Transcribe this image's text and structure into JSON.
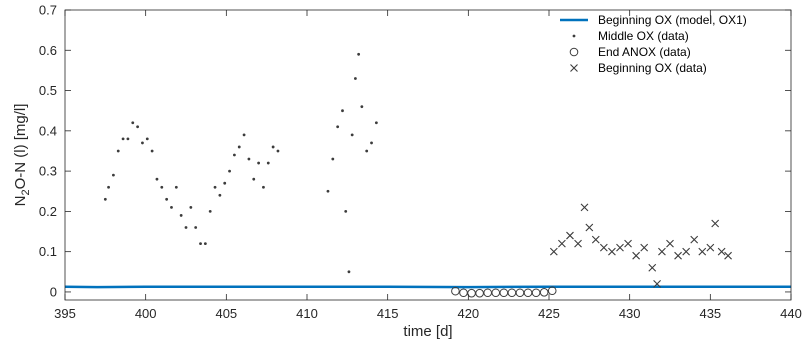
{
  "chart_data": {
    "type": "scatter",
    "xlabel": "time [d]",
    "ylabel": {
      "main": "N",
      "sub": "2",
      "rest": "O-N (l) [mg/l]"
    },
    "xlim": [
      395,
      440
    ],
    "ylim": [
      -0.02,
      0.7
    ],
    "xticks": [
      395,
      400,
      405,
      410,
      415,
      420,
      425,
      430,
      435,
      440
    ],
    "yticks": [
      0,
      0.1,
      0.2,
      0.3,
      0.4,
      0.5,
      0.6,
      0.7
    ],
    "grid": false,
    "legend_position": "top-right",
    "colors": {
      "model": "#0072BD",
      "data": "#3C3C3C",
      "axis": "#262626"
    },
    "series": [
      {
        "name": "Beginning OX (model, OX1)",
        "kind": "line",
        "x": [
          395,
          397,
          400,
          405,
          410,
          412.5,
          415,
          420,
          425,
          430,
          435,
          440
        ],
        "y": [
          0.013,
          0.012,
          0.013,
          0.013,
          0.013,
          0.013,
          0.013,
          0.012,
          0.013,
          0.013,
          0.013,
          0.013
        ]
      },
      {
        "name": "Middle OX (data)",
        "kind": "dot",
        "x": [
          397.5,
          397.7,
          398.0,
          398.3,
          398.6,
          398.9,
          399.2,
          399.5,
          399.8,
          400.1,
          400.4,
          400.7,
          401.0,
          401.3,
          401.6,
          401.9,
          402.2,
          402.5,
          402.8,
          403.1,
          403.4,
          403.7,
          404.0,
          404.3,
          404.6,
          404.9,
          405.2,
          405.5,
          405.8,
          406.1,
          406.4,
          406.7,
          407.0,
          407.3,
          407.6,
          407.9,
          408.2,
          411.3,
          411.6,
          411.9,
          412.2,
          412.4,
          412.6,
          412.8,
          413.0,
          413.2,
          413.4,
          413.7,
          414.0,
          414.3
        ],
        "y": [
          0.23,
          0.26,
          0.29,
          0.35,
          0.38,
          0.38,
          0.42,
          0.41,
          0.37,
          0.38,
          0.35,
          0.28,
          0.26,
          0.23,
          0.21,
          0.26,
          0.19,
          0.16,
          0.21,
          0.16,
          0.12,
          0.12,
          0.2,
          0.26,
          0.24,
          0.27,
          0.3,
          0.34,
          0.36,
          0.39,
          0.33,
          0.28,
          0.32,
          0.26,
          0.32,
          0.36,
          0.35,
          0.25,
          0.33,
          0.41,
          0.45,
          0.2,
          0.05,
          0.39,
          0.53,
          0.59,
          0.46,
          0.35,
          0.37,
          0.42
        ]
      },
      {
        "name": "End ANOX (data)",
        "kind": "circle",
        "x": [
          419.2,
          419.7,
          420.2,
          420.7,
          421.2,
          421.7,
          422.2,
          422.7,
          423.2,
          423.7,
          424.2,
          424.7,
          425.2
        ],
        "y": [
          0.002,
          -0.002,
          -0.003,
          -0.003,
          -0.002,
          -0.002,
          -0.002,
          -0.002,
          -0.002,
          -0.002,
          -0.002,
          -0.001,
          0.003
        ]
      },
      {
        "name": "Beginning OX (data)",
        "kind": "cross",
        "x": [
          425.3,
          425.8,
          426.3,
          426.8,
          427.2,
          427.5,
          427.9,
          428.4,
          428.9,
          429.4,
          429.9,
          430.4,
          430.9,
          431.4,
          431.7,
          432.0,
          432.5,
          433.0,
          433.5,
          434.0,
          434.5,
          435.0,
          435.3,
          435.7,
          436.1
        ],
        "y": [
          0.1,
          0.12,
          0.14,
          0.12,
          0.21,
          0.16,
          0.13,
          0.11,
          0.1,
          0.11,
          0.12,
          0.09,
          0.11,
          0.06,
          0.02,
          0.1,
          0.12,
          0.09,
          0.1,
          0.13,
          0.1,
          0.11,
          0.17,
          0.1,
          0.09
        ]
      }
    ]
  }
}
